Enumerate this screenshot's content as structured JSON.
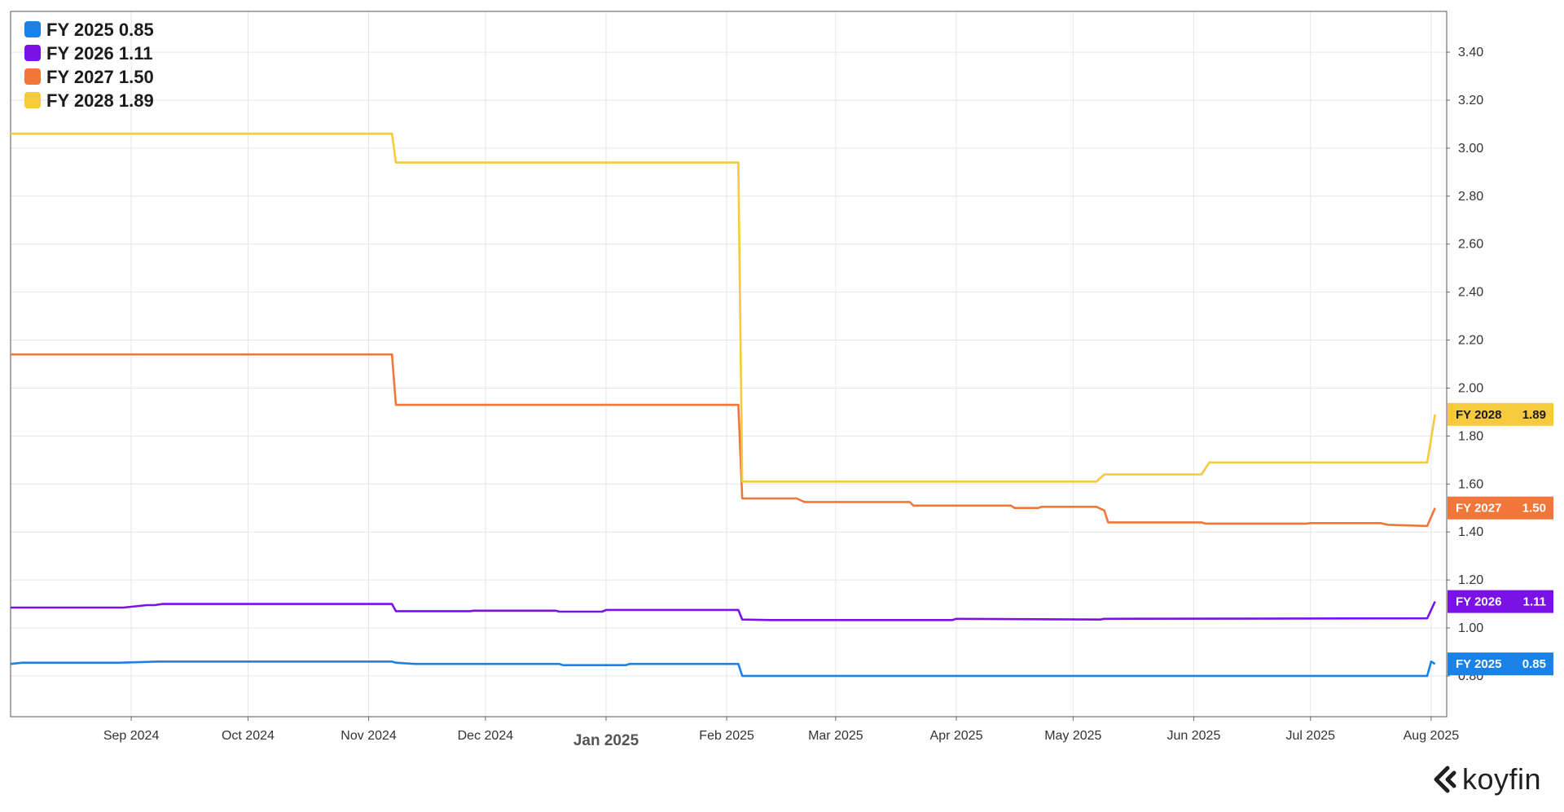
{
  "chart_data": {
    "type": "line",
    "legend_position": "top-left",
    "grid": true,
    "x_range": [
      "2024-08-01",
      "2025-08-05"
    ],
    "ylim": [
      0.63,
      3.57
    ],
    "x_ticks": [
      {
        "date": "2024-09-01",
        "label": "Sep 2024"
      },
      {
        "date": "2024-10-01",
        "label": "Oct 2024"
      },
      {
        "date": "2024-11-01",
        "label": "Nov 2024"
      },
      {
        "date": "2024-12-01",
        "label": "Dec 2024"
      },
      {
        "date": "2025-01-01",
        "label": "Jan 2025",
        "major": true
      },
      {
        "date": "2025-02-01",
        "label": "Feb 2025"
      },
      {
        "date": "2025-03-01",
        "label": "Mar 2025"
      },
      {
        "date": "2025-04-01",
        "label": "Apr 2025"
      },
      {
        "date": "2025-05-01",
        "label": "May 2025"
      },
      {
        "date": "2025-06-01",
        "label": "Jun 2025"
      },
      {
        "date": "2025-07-01",
        "label": "Jul 2025"
      },
      {
        "date": "2025-08-01",
        "label": "Aug 2025"
      }
    ],
    "y_ticks": [
      "0.80",
      "1.00",
      "1.20",
      "1.40",
      "1.60",
      "1.80",
      "2.00",
      "2.20",
      "2.40",
      "2.60",
      "2.80",
      "3.00",
      "3.20",
      "3.40"
    ],
    "series": [
      {
        "name": "FY 2025",
        "legend_label": "FY 2025 0.85",
        "end_label": "0.85",
        "color": "#1a82e6",
        "points": [
          [
            "2024-08-01",
            0.85
          ],
          [
            "2024-08-04",
            0.855
          ],
          [
            "2024-08-29",
            0.855
          ],
          [
            "2024-09-08",
            0.86
          ],
          [
            "2024-11-07",
            0.86
          ],
          [
            "2024-11-08",
            0.855
          ],
          [
            "2024-11-13",
            0.85
          ],
          [
            "2024-12-20",
            0.85
          ],
          [
            "2024-12-21",
            0.845
          ],
          [
            "2025-01-06",
            0.845
          ],
          [
            "2025-01-07",
            0.85
          ],
          [
            "2025-02-04",
            0.85
          ],
          [
            "2025-02-05",
            0.8
          ],
          [
            "2025-04-01",
            0.8
          ],
          [
            "2025-05-01",
            0.8
          ],
          [
            "2025-06-01",
            0.8
          ],
          [
            "2025-07-31",
            0.8
          ],
          [
            "2025-08-01",
            0.86
          ],
          [
            "2025-08-02",
            0.85
          ]
        ]
      },
      {
        "name": "FY 2026",
        "legend_label": "FY 2026 1.11",
        "end_label": "1.11",
        "color": "#7a12e6",
        "points": [
          [
            "2024-08-01",
            1.085
          ],
          [
            "2024-08-30",
            1.085
          ],
          [
            "2024-09-05",
            1.095
          ],
          [
            "2024-09-07",
            1.095
          ],
          [
            "2024-09-09",
            1.1
          ],
          [
            "2024-11-07",
            1.1
          ],
          [
            "2024-11-08",
            1.07
          ],
          [
            "2024-11-27",
            1.07
          ],
          [
            "2024-11-28",
            1.072
          ],
          [
            "2024-12-19",
            1.072
          ],
          [
            "2024-12-20",
            1.068
          ],
          [
            "2024-12-31",
            1.068
          ],
          [
            "2025-01-01",
            1.075
          ],
          [
            "2025-02-04",
            1.075
          ],
          [
            "2025-02-05",
            1.035
          ],
          [
            "2025-02-12",
            1.033
          ],
          [
            "2025-03-31",
            1.033
          ],
          [
            "2025-04-01",
            1.038
          ],
          [
            "2025-05-08",
            1.035
          ],
          [
            "2025-05-09",
            1.038
          ],
          [
            "2025-07-31",
            1.04
          ],
          [
            "2025-08-02",
            1.11
          ]
        ]
      },
      {
        "name": "FY 2027",
        "legend_label": "FY 2027 1.50",
        "end_label": "1.50",
        "color": "#f0763a",
        "points": [
          [
            "2024-08-01",
            2.14
          ],
          [
            "2024-11-07",
            2.14
          ],
          [
            "2024-11-08",
            1.93
          ],
          [
            "2025-02-04",
            1.93
          ],
          [
            "2025-02-05",
            1.54
          ],
          [
            "2025-02-19",
            1.54
          ],
          [
            "2025-02-21",
            1.525
          ],
          [
            "2025-03-20",
            1.525
          ],
          [
            "2025-03-21",
            1.51
          ],
          [
            "2025-04-15",
            1.51
          ],
          [
            "2025-04-16",
            1.5
          ],
          [
            "2025-04-22",
            1.5
          ],
          [
            "2025-04-23",
            1.505
          ],
          [
            "2025-05-07",
            1.505
          ],
          [
            "2025-05-09",
            1.49
          ],
          [
            "2025-05-10",
            1.44
          ],
          [
            "2025-06-03",
            1.44
          ],
          [
            "2025-06-04",
            1.435
          ],
          [
            "2025-06-30",
            1.435
          ],
          [
            "2025-07-01",
            1.437
          ],
          [
            "2025-07-19",
            1.437
          ],
          [
            "2025-07-21",
            1.43
          ],
          [
            "2025-07-31",
            1.425
          ],
          [
            "2025-08-02",
            1.5
          ]
        ]
      },
      {
        "name": "FY 2028",
        "legend_label": "FY 2028 1.89",
        "end_label": "1.89",
        "color": "#f7c93c",
        "points": [
          [
            "2024-08-01",
            3.06
          ],
          [
            "2024-11-07",
            3.06
          ],
          [
            "2024-11-08",
            2.94
          ],
          [
            "2025-02-04",
            2.94
          ],
          [
            "2025-02-05",
            1.61
          ],
          [
            "2025-05-07",
            1.61
          ],
          [
            "2025-05-09",
            1.64
          ],
          [
            "2025-06-03",
            1.64
          ],
          [
            "2025-06-05",
            1.69
          ],
          [
            "2025-07-31",
            1.69
          ],
          [
            "2025-08-02",
            1.89
          ]
        ]
      }
    ]
  },
  "branding": {
    "logo_text": "koyfin"
  }
}
